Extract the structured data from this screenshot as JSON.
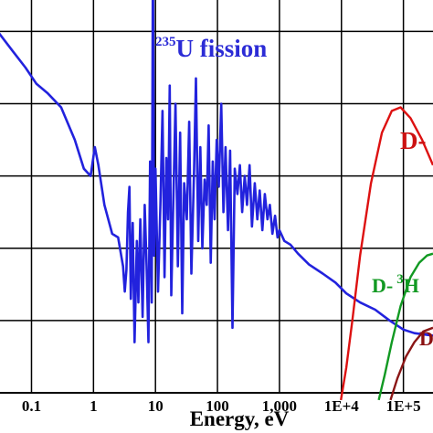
{
  "chart_data": {
    "type": "line",
    "title": "",
    "xlabel": "Energy, eV",
    "ylabel": "",
    "x_scale": "log",
    "xlim": [
      0.03,
      300000
    ],
    "ylim": [
      0,
      1
    ],
    "grid": true,
    "x_ticks": [
      {
        "value": 0.1,
        "label": "0.1"
      },
      {
        "value": 1,
        "label": "1"
      },
      {
        "value": 10,
        "label": "10"
      },
      {
        "value": 100,
        "label": "100"
      },
      {
        "value": 1000,
        "label": "1,000"
      },
      {
        "value": 10000,
        "label": "1E+4"
      },
      {
        "value": 100000,
        "label": "1E+5"
      }
    ],
    "y_grid": [
      0.2,
      0.4,
      0.6,
      0.8,
      1.0
    ],
    "annotations": [
      {
        "name": "u235",
        "pre_sup": "235",
        "text": "U  fission",
        "color": "#2b2bd6"
      },
      {
        "name": "d-red",
        "text": "D-",
        "color": "#cc1111"
      },
      {
        "name": "d-he3",
        "text": "D-",
        "sup": "3",
        "text2": "H",
        "color": "#119922"
      },
      {
        "name": "d-darkred",
        "text": "D",
        "color": "#8a1010"
      }
    ],
    "series": [
      {
        "color": "#2222dd",
        "points": [
          [
            0.03,
            0.995
          ],
          [
            0.05,
            0.945
          ],
          [
            0.08,
            0.9
          ],
          [
            0.12,
            0.855
          ],
          [
            0.18,
            0.83
          ],
          [
            0.3,
            0.79
          ],
          [
            0.5,
            0.7
          ],
          [
            0.7,
            0.62
          ],
          [
            0.9,
            0.6
          ],
          [
            1.05,
            0.68
          ],
          [
            1.2,
            0.63
          ],
          [
            1.5,
            0.52
          ],
          [
            2,
            0.44
          ],
          [
            2.5,
            0.43
          ],
          [
            3,
            0.35
          ],
          [
            3.2,
            0.28
          ],
          [
            3.4,
            0.34
          ],
          [
            3.6,
            0.5
          ],
          [
            3.8,
            0.57
          ],
          [
            4,
            0.26
          ],
          [
            4.3,
            0.47
          ],
          [
            4.6,
            0.14
          ],
          [
            5,
            0.42
          ],
          [
            5.3,
            0.25
          ],
          [
            5.7,
            0.48
          ],
          [
            6.2,
            0.21
          ],
          [
            6.7,
            0.52
          ],
          [
            7.2,
            0.35
          ],
          [
            7.7,
            0.14
          ],
          [
            8.2,
            0.64
          ],
          [
            8.7,
            0.25
          ],
          [
            9.1,
            1.22
          ],
          [
            9.5,
            0.38
          ],
          [
            10,
            0.62
          ],
          [
            11,
            0.28
          ],
          [
            12,
            0.52
          ],
          [
            13,
            0.78
          ],
          [
            14,
            0.32
          ],
          [
            15,
            0.65
          ],
          [
            16,
            0.48
          ],
          [
            17,
            0.85
          ],
          [
            18,
            0.27
          ],
          [
            19.5,
            0.55
          ],
          [
            21,
            0.8
          ],
          [
            23,
            0.35
          ],
          [
            25,
            0.72
          ],
          [
            27,
            0.22
          ],
          [
            29,
            0.58
          ],
          [
            32,
            0.48
          ],
          [
            35,
            0.75
          ],
          [
            38,
            0.33
          ],
          [
            42,
            0.62
          ],
          [
            45,
            0.87
          ],
          [
            49,
            0.42
          ],
          [
            53,
            0.68
          ],
          [
            57,
            0.4
          ],
          [
            62,
            0.59
          ],
          [
            67,
            0.52
          ],
          [
            72,
            0.74
          ],
          [
            78,
            0.36
          ],
          [
            84,
            0.64
          ],
          [
            90,
            0.48
          ],
          [
            97,
            0.7
          ],
          [
            105,
            0.57
          ],
          [
            115,
            0.8
          ],
          [
            125,
            0.5
          ],
          [
            135,
            0.68
          ],
          [
            148,
            0.45
          ],
          [
            160,
            0.67
          ],
          [
            175,
            0.18
          ],
          [
            190,
            0.62
          ],
          [
            210,
            0.55
          ],
          [
            230,
            0.63
          ],
          [
            250,
            0.5
          ],
          [
            275,
            0.6
          ],
          [
            300,
            0.52
          ],
          [
            330,
            0.63
          ],
          [
            360,
            0.46
          ],
          [
            400,
            0.58
          ],
          [
            440,
            0.48
          ],
          [
            480,
            0.56
          ],
          [
            530,
            0.45
          ],
          [
            580,
            0.55
          ],
          [
            640,
            0.48
          ],
          [
            700,
            0.52
          ],
          [
            770,
            0.44
          ],
          [
            850,
            0.49
          ],
          [
            930,
            0.43
          ],
          [
            1000,
            0.45
          ],
          [
            1200,
            0.42
          ],
          [
            1500,
            0.41
          ],
          [
            2000,
            0.385
          ],
          [
            3000,
            0.355
          ],
          [
            5000,
            0.33
          ],
          [
            8000,
            0.305
          ],
          [
            12000,
            0.275
          ],
          [
            20000,
            0.25
          ],
          [
            35000,
            0.23
          ],
          [
            60000,
            0.2
          ],
          [
            100000,
            0.175
          ],
          [
            150000,
            0.165
          ],
          [
            250000,
            0.16
          ],
          [
            300000,
            0.158
          ]
        ]
      },
      {
        "color": "#dd1111",
        "points": [
          [
            9800,
            -0.02
          ],
          [
            12000,
            0.07
          ],
          [
            15000,
            0.2
          ],
          [
            20000,
            0.38
          ],
          [
            30000,
            0.58
          ],
          [
            45000,
            0.72
          ],
          [
            65000,
            0.78
          ],
          [
            90000,
            0.79
          ],
          [
            130000,
            0.76
          ],
          [
            200000,
            0.7
          ],
          [
            300000,
            0.63
          ]
        ]
      },
      {
        "color": "#119922",
        "points": [
          [
            40000,
            -0.02
          ],
          [
            50000,
            0.05
          ],
          [
            65000,
            0.14
          ],
          [
            90000,
            0.24
          ],
          [
            130000,
            0.32
          ],
          [
            180000,
            0.36
          ],
          [
            240000,
            0.38
          ],
          [
            300000,
            0.385
          ]
        ]
      },
      {
        "color": "#8a1515",
        "points": [
          [
            62000,
            -0.02
          ],
          [
            80000,
            0.04
          ],
          [
            110000,
            0.1
          ],
          [
            150000,
            0.14
          ],
          [
            210000,
            0.17
          ],
          [
            300000,
            0.18
          ]
        ]
      }
    ]
  }
}
